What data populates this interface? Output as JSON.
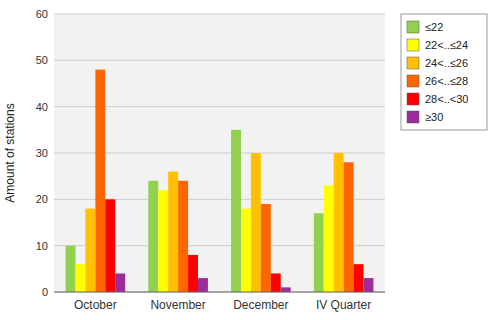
{
  "chart_data": {
    "type": "bar",
    "categories": [
      "October",
      "November",
      "December",
      "IV Quarter"
    ],
    "series": [
      {
        "name": "≤22",
        "color": "#92d050",
        "values": [
          10,
          24,
          35,
          17
        ]
      },
      {
        "name": "22<..≤24",
        "color": "#ffff00",
        "values": [
          6,
          22,
          18,
          23
        ]
      },
      {
        "name": "24<..≤26",
        "color": "#ffc000",
        "values": [
          18,
          26,
          30,
          30
        ]
      },
      {
        "name": "26<..≤28",
        "color": "#ff6600",
        "values": [
          48,
          24,
          19,
          28
        ]
      },
      {
        "name": "28<..<30",
        "color": "#ff0000",
        "values": [
          20,
          8,
          4,
          6
        ]
      },
      {
        "name": "≥30",
        "color": "#9b2d9b",
        "values": [
          4,
          3,
          1,
          3
        ]
      }
    ],
    "ylabel": "Amount of stations",
    "ylim": [
      0,
      60
    ],
    "yticks": [
      0,
      10,
      20,
      30,
      40,
      50,
      60
    ],
    "grid": true,
    "legend": "right"
  }
}
